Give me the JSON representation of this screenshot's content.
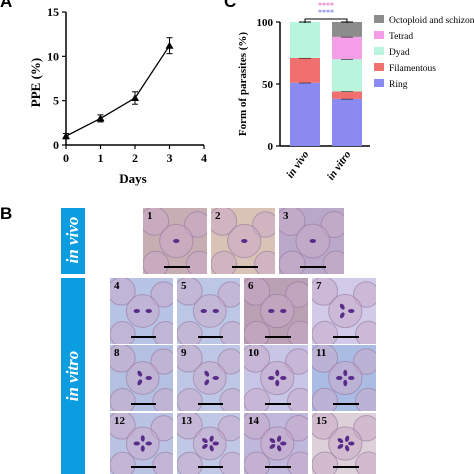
{
  "panels": {
    "a": "A",
    "b": "B",
    "c": "C"
  },
  "chart_data": [
    {
      "type": "line",
      "title": "",
      "xlabel": "Days",
      "ylabel": "PPE (%)",
      "x": [
        0,
        1,
        2,
        3
      ],
      "xticks": [
        "0",
        "1",
        "2",
        "3",
        "4"
      ],
      "yticks": [
        "0",
        "5",
        "10",
        "15"
      ],
      "xlim": [
        0,
        4
      ],
      "ylim": [
        0,
        15
      ],
      "grid": false,
      "series": [
        {
          "values": [
            1.0,
            3.0,
            5.3,
            11.2
          ],
          "errors": [
            0.3,
            0.4,
            0.7,
            0.9
          ],
          "color": "#000000"
        }
      ]
    },
    {
      "type": "bar",
      "stacked": true,
      "title": "",
      "xlabel": "",
      "ylabel": "Form of parasites (%)",
      "categories": [
        "in vivo",
        "in vitro"
      ],
      "yticks": [
        "0",
        "50",
        "100"
      ],
      "ylim": [
        0,
        100
      ],
      "grid": false,
      "legend_position": "right",
      "significance": [
        "****",
        "****"
      ],
      "significance_colors": [
        "#e879c6",
        "#7f86e8"
      ],
      "series": [
        {
          "name": "Ring",
          "color": "#8a8af0",
          "values": [
            51,
            38
          ]
        },
        {
          "name": "Filamentous",
          "color": "#f07070",
          "values": [
            20,
            6
          ]
        },
        {
          "name": "Dyad",
          "color": "#b8f5dc",
          "values": [
            29,
            26
          ]
        },
        {
          "name": "Tetrad",
          "color": "#f59ee8",
          "values": [
            0,
            18
          ]
        },
        {
          "name": "Octoploid and schizont",
          "color": "#8c8c8c",
          "values": [
            0,
            12
          ]
        }
      ]
    }
  ],
  "figure_b": {
    "in_vivo_label": "in vivo",
    "in_vitro_label": "in vitro",
    "tiles": [
      {
        "n": "1",
        "bg": "#c7aeb3"
      },
      {
        "n": "2",
        "bg": "#d9c3b6"
      },
      {
        "n": "3",
        "bg": "#b9a8c8"
      },
      {
        "n": "4",
        "bg": "#b7c4e6"
      },
      {
        "n": "5",
        "bg": "#bcc7e6"
      },
      {
        "n": "6",
        "bg": "#b9a0b2"
      },
      {
        "n": "7",
        "bg": "#d1cbe9"
      },
      {
        "n": "8",
        "bg": "#b3c0e2"
      },
      {
        "n": "9",
        "bg": "#bec8e6"
      },
      {
        "n": "10",
        "bg": "#c8c6e6"
      },
      {
        "n": "11",
        "bg": "#aabce4"
      },
      {
        "n": "12",
        "bg": "#bac3e4"
      },
      {
        "n": "13",
        "bg": "#c0c8e6"
      },
      {
        "n": "14",
        "bg": "#bfb8dc"
      },
      {
        "n": "15",
        "bg": "#ddd0d8"
      }
    ]
  }
}
